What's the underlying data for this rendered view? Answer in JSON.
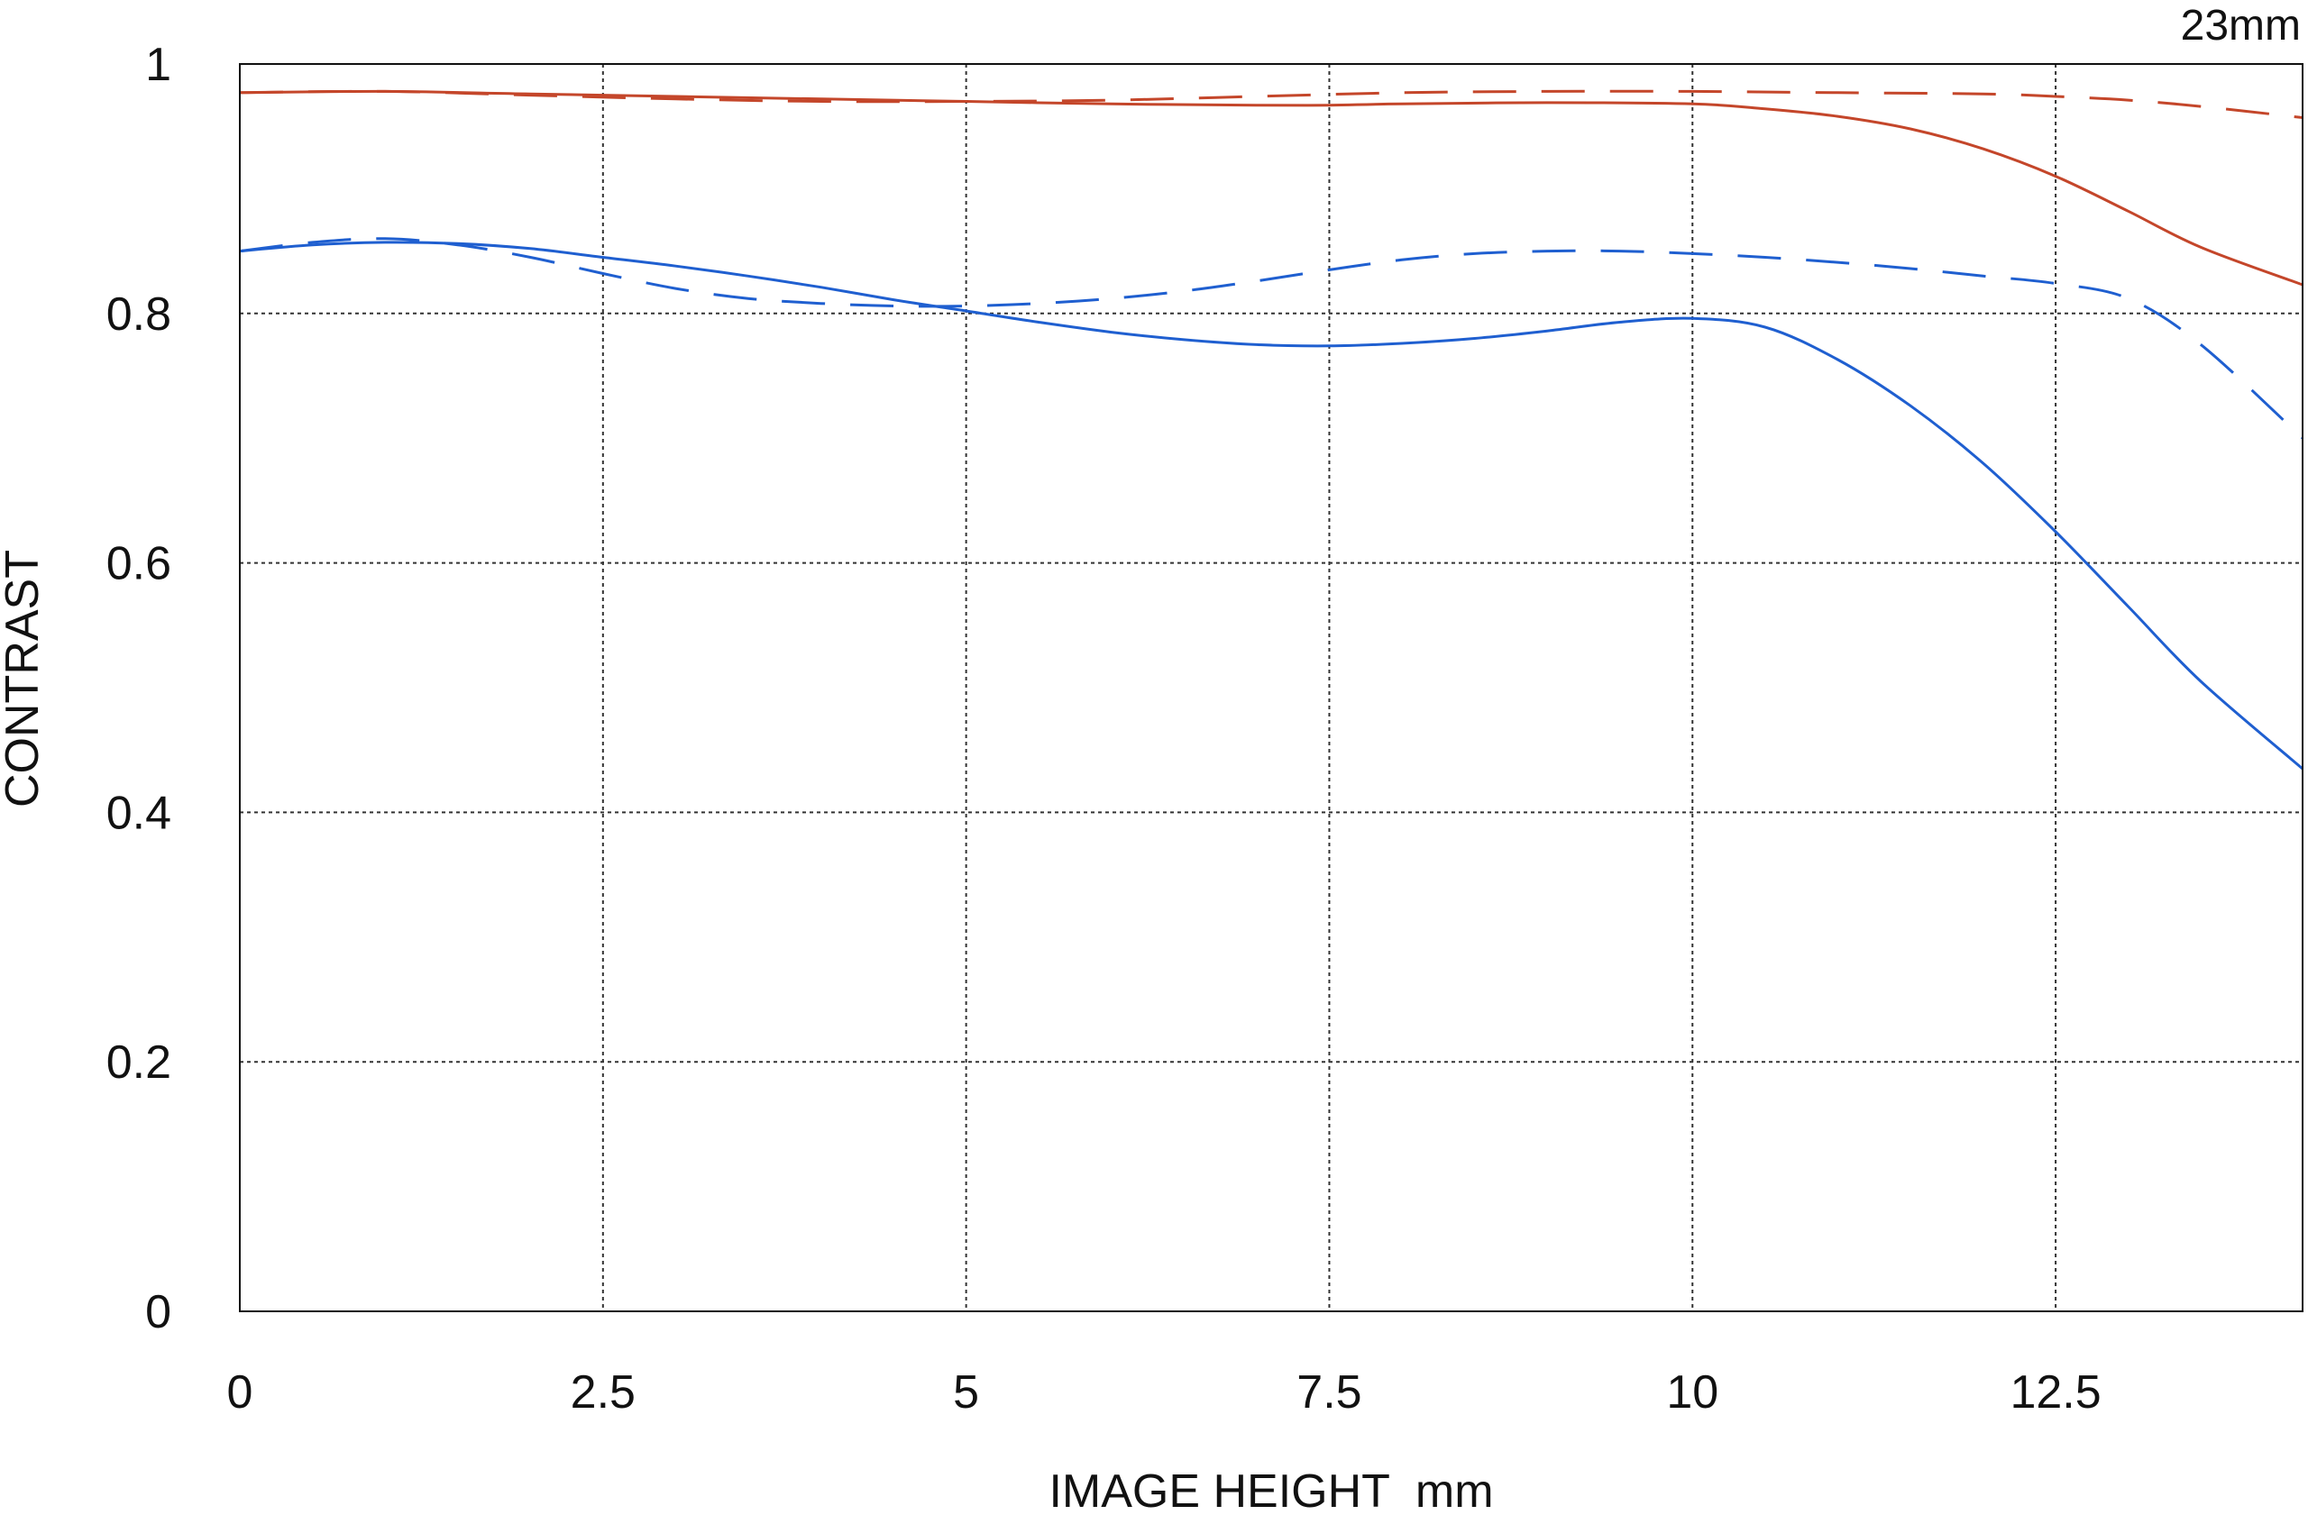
{
  "chart_data": {
    "type": "line",
    "title": "",
    "corner_label": "23mm",
    "xlabel": "IMAGE HEIGHT  mm",
    "ylabel": "CONTRAST",
    "xlim": [
      0,
      14.2
    ],
    "ylim": [
      0,
      1
    ],
    "x_ticks": [
      {
        "value": 0,
        "label": "0"
      },
      {
        "value": 2.5,
        "label": "2.5"
      },
      {
        "value": 5,
        "label": "5"
      },
      {
        "value": 7.5,
        "label": "7.5"
      },
      {
        "value": 10,
        "label": "10"
      },
      {
        "value": 12.5,
        "label": "12.5"
      }
    ],
    "y_ticks": [
      {
        "value": 0,
        "label": "0"
      },
      {
        "value": 0.2,
        "label": "0.2"
      },
      {
        "value": 0.4,
        "label": "0.4"
      },
      {
        "value": 0.6,
        "label": "0.6"
      },
      {
        "value": 0.8,
        "label": "0.8"
      },
      {
        "value": 1,
        "label": "1"
      }
    ],
    "grid": true,
    "grid_style": "dotted",
    "colors": {
      "red": "#c4462a",
      "blue": "#1f5fd0",
      "axis": "#111111",
      "grid": "#333333"
    },
    "series": [
      {
        "color_key": "red",
        "dash": "solid",
        "points": [
          [
            0,
            0.977
          ],
          [
            1,
            0.978
          ],
          [
            2,
            0.976
          ],
          [
            3,
            0.974
          ],
          [
            4,
            0.972
          ],
          [
            5,
            0.97
          ],
          [
            6,
            0.968
          ],
          [
            7,
            0.967
          ],
          [
            7.5,
            0.967
          ],
          [
            8,
            0.968
          ],
          [
            9,
            0.969
          ],
          [
            10,
            0.968
          ],
          [
            10.5,
            0.964
          ],
          [
            11,
            0.958
          ],
          [
            11.5,
            0.948
          ],
          [
            12,
            0.932
          ],
          [
            12.5,
            0.91
          ],
          [
            13,
            0.882
          ],
          [
            13.5,
            0.853
          ],
          [
            14.2,
            0.823
          ]
        ]
      },
      {
        "color_key": "red",
        "dash": "dashed",
        "points": [
          [
            0,
            0.977
          ],
          [
            1,
            0.978
          ],
          [
            2,
            0.975
          ],
          [
            3,
            0.972
          ],
          [
            4,
            0.97
          ],
          [
            5,
            0.97
          ],
          [
            6,
            0.971
          ],
          [
            7,
            0.974
          ],
          [
            8,
            0.977
          ],
          [
            9,
            0.978
          ],
          [
            10,
            0.978
          ],
          [
            11,
            0.977
          ],
          [
            12,
            0.976
          ],
          [
            12.5,
            0.974
          ],
          [
            13,
            0.971
          ],
          [
            13.5,
            0.966
          ],
          [
            14.2,
            0.957
          ]
        ]
      },
      {
        "color_key": "blue",
        "dash": "solid",
        "points": [
          [
            0,
            0.85
          ],
          [
            0.5,
            0.855
          ],
          [
            1,
            0.857
          ],
          [
            1.5,
            0.856
          ],
          [
            2,
            0.852
          ],
          [
            2.5,
            0.845
          ],
          [
            3,
            0.838
          ],
          [
            3.5,
            0.83
          ],
          [
            4,
            0.821
          ],
          [
            4.5,
            0.811
          ],
          [
            5,
            0.802
          ],
          [
            5.5,
            0.793
          ],
          [
            6,
            0.785
          ],
          [
            6.5,
            0.779
          ],
          [
            7,
            0.775
          ],
          [
            7.5,
            0.774
          ],
          [
            8,
            0.776
          ],
          [
            8.5,
            0.78
          ],
          [
            9,
            0.786
          ],
          [
            9.5,
            0.793
          ],
          [
            10,
            0.796
          ],
          [
            10.5,
            0.789
          ],
          [
            11,
            0.763
          ],
          [
            11.5,
            0.726
          ],
          [
            12,
            0.68
          ],
          [
            12.5,
            0.625
          ],
          [
            13,
            0.565
          ],
          [
            13.5,
            0.505
          ],
          [
            14.2,
            0.435
          ]
        ]
      },
      {
        "color_key": "blue",
        "dash": "dashed",
        "points": [
          [
            0,
            0.85
          ],
          [
            0.5,
            0.857
          ],
          [
            1,
            0.86
          ],
          [
            1.5,
            0.855
          ],
          [
            2,
            0.845
          ],
          [
            2.5,
            0.832
          ],
          [
            3,
            0.82
          ],
          [
            3.5,
            0.812
          ],
          [
            4,
            0.808
          ],
          [
            4.5,
            0.806
          ],
          [
            5,
            0.806
          ],
          [
            5.5,
            0.808
          ],
          [
            6,
            0.812
          ],
          [
            6.5,
            0.818
          ],
          [
            7,
            0.826
          ],
          [
            7.5,
            0.835
          ],
          [
            8,
            0.843
          ],
          [
            8.5,
            0.848
          ],
          [
            9,
            0.85
          ],
          [
            9.5,
            0.85
          ],
          [
            10,
            0.848
          ],
          [
            10.5,
            0.845
          ],
          [
            11,
            0.841
          ],
          [
            11.5,
            0.836
          ],
          [
            12,
            0.83
          ],
          [
            12.5,
            0.824
          ],
          [
            13,
            0.812
          ],
          [
            13.5,
            0.775
          ],
          [
            14.2,
            0.7
          ]
        ]
      }
    ]
  }
}
